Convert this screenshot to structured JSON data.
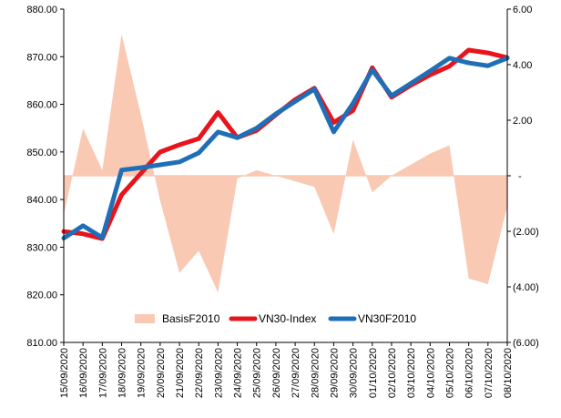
{
  "chart_data": {
    "type": "line",
    "title": "",
    "categories": [
      "15/09/2020",
      "16/09/2020",
      "17/09/2020",
      "18/09/2020",
      "19/09/2020",
      "20/09/2020",
      "21/09/2020",
      "22/09/2020",
      "23/09/2020",
      "24/09/2020",
      "25/09/2020",
      "26/09/2020",
      "27/09/2020",
      "28/09/2020",
      "29/09/2020",
      "30/09/2020",
      "01/10/2020",
      "02/10/2020",
      "03/10/2020",
      "04/10/2020",
      "05/10/2020",
      "06/10/2020",
      "07/10/2020",
      "08/10/2020"
    ],
    "left_axis": {
      "min": 810,
      "max": 880,
      "ticks": [
        810,
        820,
        830,
        840,
        850,
        860,
        870,
        880
      ],
      "tick_labels": [
        "810.00",
        "820.00",
        "830.00",
        "840.00",
        "850.00",
        "860.00",
        "870.00",
        "880.00"
      ]
    },
    "right_axis": {
      "min": -6,
      "max": 6,
      "ticks": [
        -6,
        -4,
        -2,
        0,
        2,
        4,
        6
      ],
      "tick_labels": [
        "(6.00)",
        "(4.00)",
        "(2.00)",
        "-",
        "2.00",
        "4.00",
        "6.00"
      ]
    },
    "series": [
      {
        "name": "BasisF2010",
        "kind": "area",
        "axis": "right",
        "color": "#F9C9B4",
        "values": [
          -1.4,
          1.7,
          0.2,
          5.1,
          2.2,
          -0.9,
          -3.5,
          -2.7,
          -4.2,
          -0.1,
          0.2,
          0.0,
          -0.2,
          -0.4,
          -2.1,
          1.3,
          -0.6,
          0.0,
          0.4,
          0.8,
          1.1,
          -3.7,
          -3.9,
          -1.1
        ]
      },
      {
        "name": "VN30-Index",
        "kind": "line",
        "axis": "left",
        "color": "#E8141C",
        "values": [
          833.3,
          832.8,
          831.8,
          841.0,
          845.5,
          850.0,
          851.5,
          852.8,
          858.3,
          853.0,
          854.5,
          857.8,
          861.0,
          863.4,
          856.2,
          858.7,
          867.7,
          861.5,
          864.0,
          866.2,
          868.0,
          871.4,
          870.8,
          869.8
        ]
      },
      {
        "name": "VN30F2010",
        "kind": "line",
        "axis": "left",
        "color": "#1F6FB7",
        "values": [
          831.9,
          834.5,
          832.0,
          846.2,
          846.7,
          847.3,
          847.9,
          849.8,
          854.2,
          853.0,
          855.0,
          858.0,
          860.6,
          863.2,
          854.2,
          860.2,
          867.2,
          861.8,
          864.4,
          867.0,
          869.7,
          868.7,
          868.1,
          869.7
        ]
      }
    ],
    "legend": {
      "position": "bottom-center",
      "entries": [
        "BasisF2010",
        "VN30-Index",
        "VN30F2010"
      ]
    },
    "grid": false
  }
}
